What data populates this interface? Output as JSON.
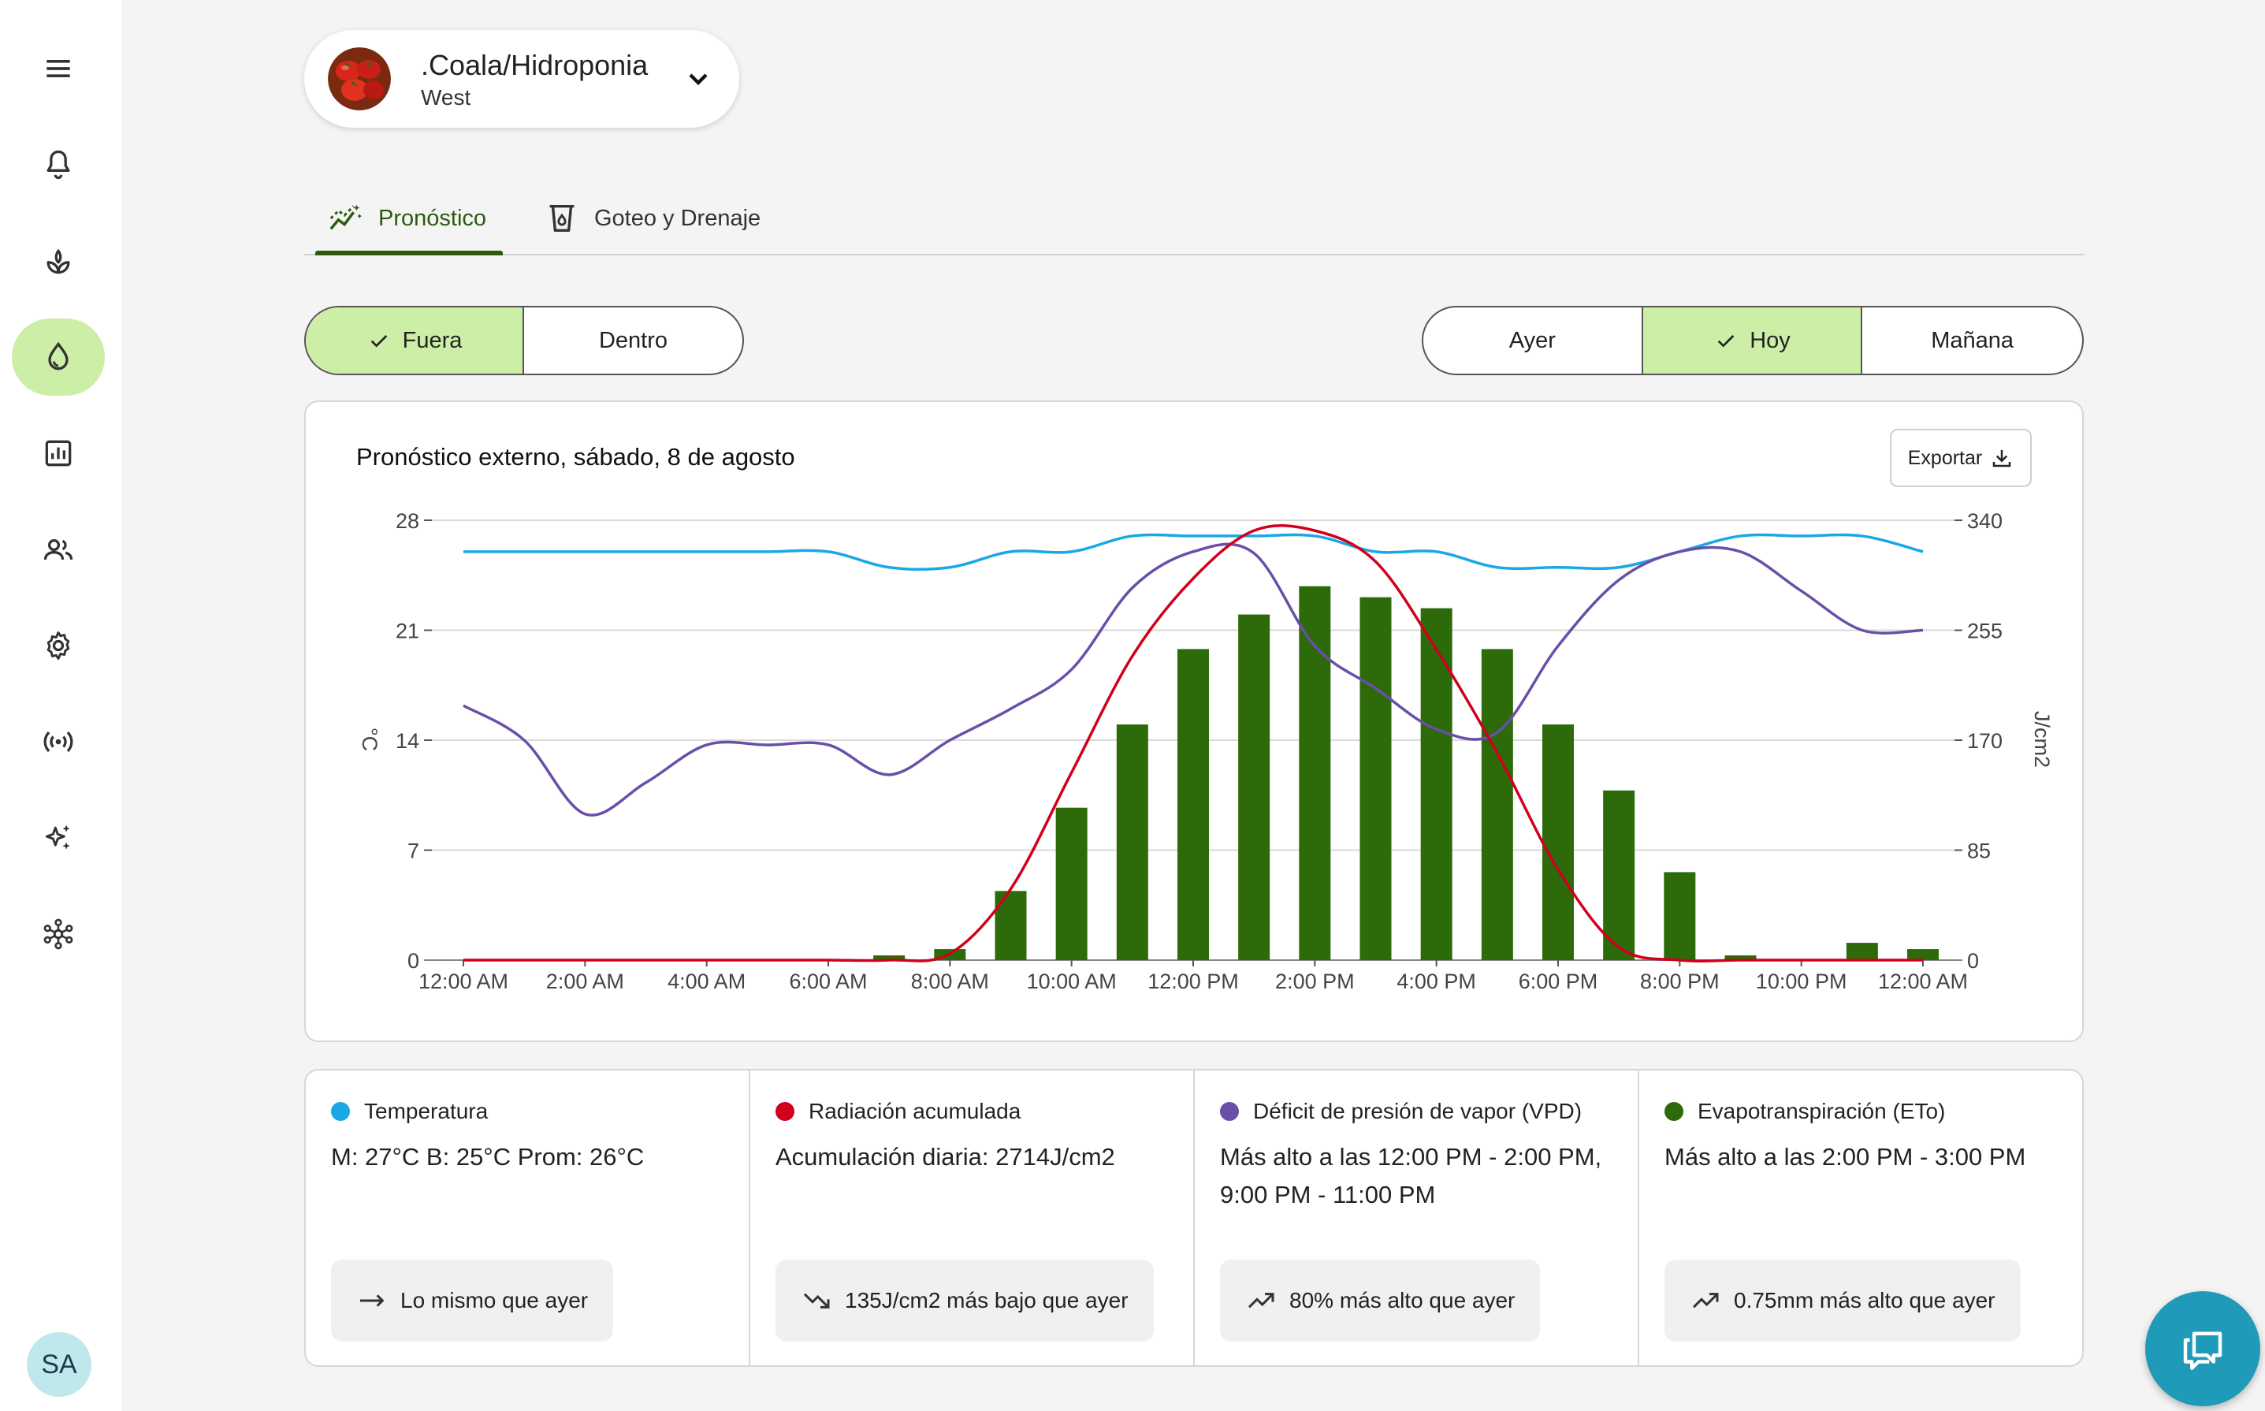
{
  "sidebar": {
    "items": [
      {
        "icon": "menu-icon"
      },
      {
        "icon": "bell-icon"
      },
      {
        "icon": "plant-icon"
      },
      {
        "icon": "water-drop-icon",
        "active": true
      },
      {
        "icon": "bar-chart-icon"
      },
      {
        "icon": "users-icon"
      },
      {
        "icon": "gear-icon"
      },
      {
        "icon": "broadcast-icon"
      },
      {
        "icon": "sparkles-icon"
      },
      {
        "icon": "network-icon"
      }
    ],
    "avatar_initials": "SA"
  },
  "location": {
    "title": ".Coala/Hidroponia",
    "subtitle": "West"
  },
  "tabs": [
    {
      "label": "Pronóstico",
      "icon": "forecast-icon",
      "active": true
    },
    {
      "label": "Goteo y Drenaje",
      "icon": "drip-cup-icon",
      "active": false
    }
  ],
  "location_toggle": [
    {
      "label": "Fuera",
      "selected": true
    },
    {
      "label": "Dentro",
      "selected": false
    }
  ],
  "day_toggle": [
    {
      "label": "Ayer",
      "selected": false
    },
    {
      "label": "Hoy",
      "selected": true
    },
    {
      "label": "Mañana",
      "selected": false
    }
  ],
  "chart_card": {
    "title": "Pronóstico externo, sábado, 8 de agosto",
    "export_label": "Exportar"
  },
  "colors": {
    "temperature": "#1aa7e6",
    "radiation": "#d1001c",
    "vpd": "#6a4fa8",
    "eto": "#2d6a0a",
    "accent": "#cdeea7",
    "fab": "#1f9bb9"
  },
  "chart_data": {
    "type": "bar+line",
    "title": "Pronóstico externo, sábado, 8 de agosto",
    "x_tick_labels": [
      "12:00 AM",
      "2:00 AM",
      "4:00 AM",
      "6:00 AM",
      "8:00 AM",
      "10:00 AM",
      "12:00 PM",
      "2:00 PM",
      "4:00 PM",
      "6:00 PM",
      "8:00 PM",
      "10:00 PM",
      "12:00 AM"
    ],
    "x_hours": [
      0,
      1,
      2,
      3,
      4,
      5,
      6,
      7,
      8,
      9,
      10,
      11,
      12,
      13,
      14,
      15,
      16,
      17,
      18,
      19,
      20,
      21,
      22,
      23,
      24
    ],
    "y_left": {
      "label": "°C",
      "ticks": [
        0,
        7,
        14,
        21,
        28
      ],
      "range": [
        0,
        28
      ]
    },
    "y_right": {
      "label": "J/cm2",
      "ticks": [
        0,
        85,
        170,
        255,
        340
      ],
      "range": [
        0,
        340
      ]
    },
    "grid": true,
    "series": [
      {
        "name": "Evapotranspiración (ETo)",
        "kind": "bar",
        "axis": "left",
        "hours": [
          7,
          8,
          9,
          10,
          11,
          12,
          13,
          14,
          15,
          16,
          17,
          18,
          19,
          20,
          21,
          23,
          24
        ],
        "values": [
          0.3,
          0.7,
          4.4,
          9.7,
          15.0,
          19.8,
          22.0,
          23.8,
          23.1,
          22.4,
          19.8,
          15.0,
          10.8,
          5.6,
          0.3,
          1.1,
          0.7
        ]
      },
      {
        "name": "Temperatura",
        "kind": "line",
        "axis": "left",
        "values": [
          26.0,
          26.0,
          26.0,
          26.0,
          26.0,
          26.0,
          26.0,
          25.0,
          25.0,
          26.0,
          26.0,
          27.0,
          27.0,
          27.0,
          27.0,
          26.0,
          26.0,
          25.0,
          25.0,
          25.0,
          26.0,
          27.0,
          27.0,
          27.0,
          26.0
        ]
      },
      {
        "name": "Déficit de presión de vapor (VPD)",
        "kind": "line",
        "axis": "left",
        "values": [
          16.2,
          14.0,
          9.3,
          11.3,
          13.7,
          13.7,
          13.7,
          11.8,
          14.0,
          16.0,
          18.5,
          23.7,
          26.0,
          25.9,
          20.0,
          17.3,
          14.7,
          14.5,
          20.0,
          24.2,
          26.0,
          26.0,
          23.5,
          21.0,
          21.0
        ]
      },
      {
        "name": "Radiación acumulada",
        "kind": "line",
        "axis": "right",
        "values": [
          0,
          0,
          0,
          0,
          0,
          0,
          0,
          0,
          5,
          55,
          145,
          235,
          295,
          332,
          332,
          308,
          240,
          160,
          70,
          10,
          0,
          0,
          0,
          0,
          0
        ]
      }
    ]
  },
  "summary": [
    {
      "title": "Temperatura",
      "color": "#1aa7e6",
      "text": "M: 27°C B: 25°C Prom: 26°C",
      "trend": "Lo mismo que ayer",
      "trend_icon": "arrow-right-icon"
    },
    {
      "title": "Radiación acumulada",
      "color": "#d1001c",
      "text": "Acumulación diaria: 2714J/cm2",
      "trend": "135J/cm2 más bajo que ayer",
      "trend_icon": "trend-down-icon"
    },
    {
      "title": "Déficit de presión de vapor (VPD)",
      "color": "#6a4fa8",
      "text": "Más alto a las 12:00 PM - 2:00 PM, 9:00 PM - 11:00 PM",
      "trend": "80% más alto que ayer",
      "trend_icon": "trend-up-icon"
    },
    {
      "title": "Evapotranspiración (ETo)",
      "color": "#2d6a0a",
      "text": "Más alto a las 2:00 PM - 3:00 PM",
      "trend": "0.75mm más alto que ayer",
      "trend_icon": "trend-up-icon"
    }
  ],
  "fab": {
    "icon": "chat-icon"
  }
}
